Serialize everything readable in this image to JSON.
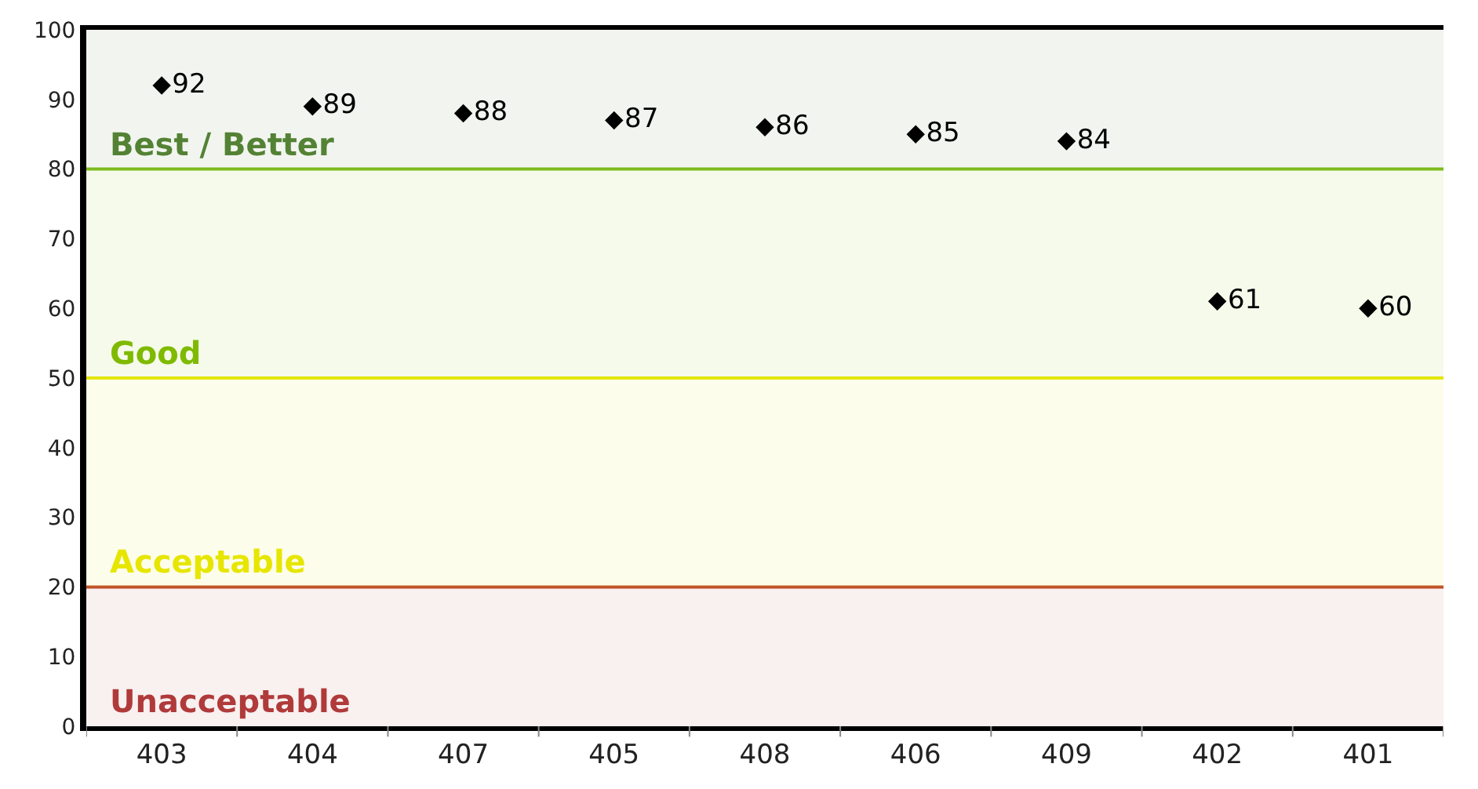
{
  "chart_data": {
    "type": "scatter",
    "categories": [
      "403",
      "404",
      "407",
      "405",
      "408",
      "406",
      "409",
      "402",
      "401"
    ],
    "series": [
      {
        "color": "#000000",
        "values": [
          92,
          89,
          88,
          87,
          86,
          85,
          84,
          61,
          60
        ]
      }
    ],
    "marker": "diamond",
    "data_labels": true,
    "ylim": [
      0,
      100
    ],
    "yticks": [
      0,
      10,
      20,
      30,
      40,
      50,
      60,
      70,
      80,
      90,
      100
    ],
    "grid": false,
    "legend": false,
    "ref_lines": [
      {
        "axis": "y",
        "value": 80,
        "color": "#7fbf1f"
      },
      {
        "axis": "y",
        "value": 50,
        "color": "#e8e800"
      },
      {
        "axis": "y",
        "value": 20,
        "color": "#c0502a"
      }
    ],
    "bands": [
      {
        "axis": "y",
        "from": 80,
        "to": 100,
        "label": "Best / Better",
        "color": "#548235"
      },
      {
        "axis": "y",
        "from": 50,
        "to": 80,
        "label": "Good",
        "color": "#7fba00"
      },
      {
        "axis": "y",
        "from": 20,
        "to": 50,
        "label": "Acceptable",
        "color": "#e6e600"
      },
      {
        "axis": "y",
        "from": 0,
        "to": 20,
        "label": "Unacceptable",
        "color": "#b03a3a"
      }
    ]
  }
}
